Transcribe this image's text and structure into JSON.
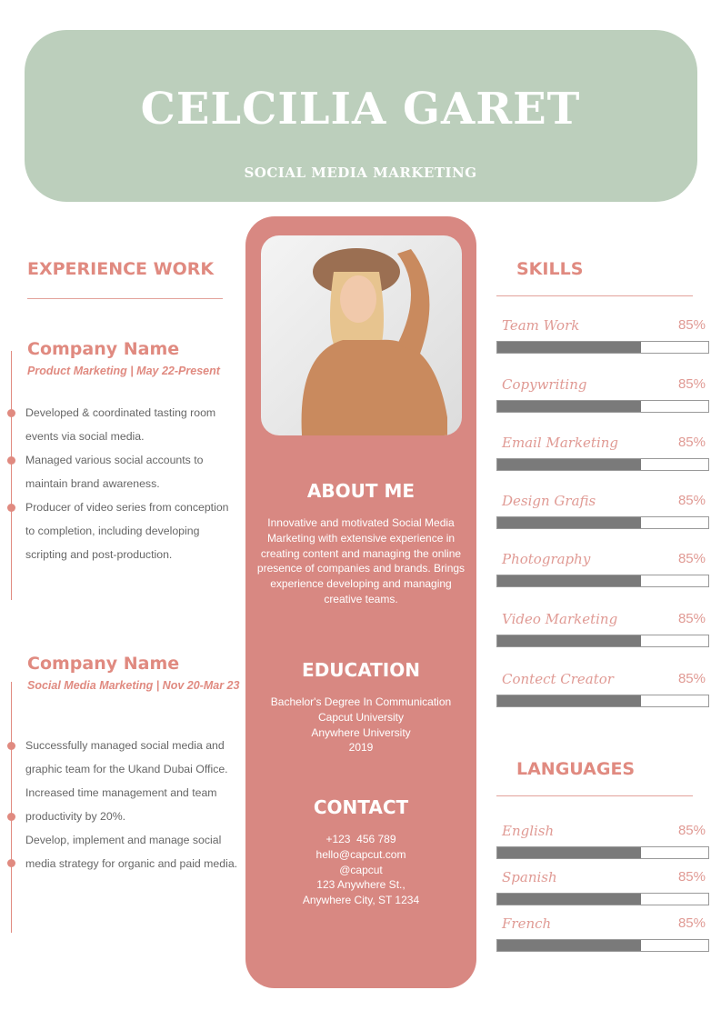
{
  "header": {
    "name": "CELCILIA GARET",
    "role": "SOCIAL MEDIA MARKETING"
  },
  "colors": {
    "header_bg": "#bccfbc",
    "accent": "#d88882",
    "heading": "#e08a80",
    "bar_fill": "#7a7a7a"
  },
  "experience": {
    "heading": "EXPERIENCE WORK",
    "jobs": [
      {
        "company": "Company Name",
        "subtitle": "Product Marketing | May 22-Present",
        "bullets": [
          "Developed & coordinated tasting room events via social media.",
          "Managed various social accounts to maintain brand awareness.",
          "Producer of video series from conception to completion, including developing scripting and post-production."
        ]
      },
      {
        "company": "Company Name",
        "subtitle": "Social Media Marketing | Nov 20-Mar 23",
        "bullets": [
          "Successfully managed social media and graphic team for the Ukand Dubai Office.",
          "Increased time management and team productivity by 20%.",
          "Develop, implement and manage social media strategy for organic and paid media."
        ]
      }
    ]
  },
  "about": {
    "heading": "ABOUT ME",
    "text": "Innovative and motivated Social Media Marketing with extensive experience in creating content and managing the online presence of companies and brands. Brings experience developing and managing creative teams."
  },
  "education": {
    "heading": "EDUCATION",
    "lines": [
      "Bachelor's Degree In Communication",
      "Capcut University",
      "Anywhere University",
      "2019"
    ]
  },
  "contact": {
    "heading": "CONTACT",
    "lines": [
      "+123  456 789",
      "hello@capcut.com",
      "@capcut",
      "123 Anywhere St.,",
      "Anywhere City, ST 1234"
    ]
  },
  "skills": {
    "heading": "SKILLS",
    "items": [
      {
        "label": "Team Work",
        "percent": "85%",
        "fill_percent": 68
      },
      {
        "label": "Copywriting",
        "percent": "85%",
        "fill_percent": 68
      },
      {
        "label": "Email Marketing",
        "percent": "85%",
        "fill_percent": 68
      },
      {
        "label": "Design Grafis",
        "percent": "85%",
        "fill_percent": 68
      },
      {
        "label": "Photography",
        "percent": "85%",
        "fill_percent": 68
      },
      {
        "label": "Video Marketing",
        "percent": "85%",
        "fill_percent": 68
      },
      {
        "label": "Contect Creator",
        "percent": "85%",
        "fill_percent": 68
      }
    ]
  },
  "languages": {
    "heading": "LANGUAGES",
    "items": [
      {
        "label": "English",
        "percent": "85%",
        "fill_percent": 68
      },
      {
        "label": "Spanish",
        "percent": "85%",
        "fill_percent": 68
      },
      {
        "label": "French",
        "percent": "85%",
        "fill_percent": 68
      }
    ]
  }
}
